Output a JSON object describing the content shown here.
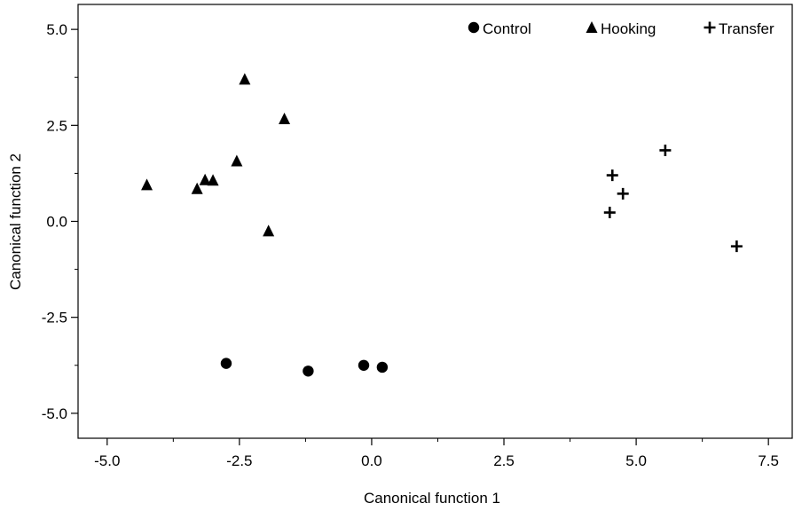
{
  "chart_data": {
    "type": "scatter",
    "xlabel": "Canonical function 1",
    "ylabel": "Canonical function 2",
    "xlim": [
      -5.55,
      7.95
    ],
    "ylim": [
      -5.65,
      5.65
    ],
    "xticks": [
      {
        "value": -5.0,
        "label": "-5.0"
      },
      {
        "value": -2.5,
        "label": "-2.5"
      },
      {
        "value": 0.0,
        "label": "0.0"
      },
      {
        "value": 2.5,
        "label": "2.5"
      },
      {
        "value": 5.0,
        "label": "5.0"
      },
      {
        "value": 7.5,
        "label": "7.5"
      }
    ],
    "yticks": [
      {
        "value": 5.0,
        "label": "5.0"
      },
      {
        "value": 2.5,
        "label": "2.5"
      },
      {
        "value": 0.0,
        "label": "0.0"
      },
      {
        "value": -2.5,
        "label": "-2.5"
      },
      {
        "value": -5.0,
        "label": "-5.0"
      }
    ],
    "grid": false,
    "legend_position": "top-right",
    "series": [
      {
        "name": "Control",
        "marker": "circle",
        "color": "#000000",
        "points": [
          [
            -2.75,
            -3.7
          ],
          [
            -1.2,
            -3.9
          ],
          [
            -0.15,
            -3.75
          ],
          [
            0.2,
            -3.8
          ]
        ]
      },
      {
        "name": "Hooking",
        "marker": "triangle",
        "color": "#000000",
        "points": [
          [
            -4.25,
            0.95
          ],
          [
            -3.3,
            0.85
          ],
          [
            -3.15,
            1.08
          ],
          [
            -3.0,
            1.07
          ],
          [
            -2.55,
            1.57
          ],
          [
            -2.4,
            3.7
          ],
          [
            -1.65,
            2.67
          ],
          [
            -1.95,
            -0.25
          ]
        ]
      },
      {
        "name": "Transfer",
        "marker": "plus",
        "color": "#000000",
        "points": [
          [
            4.55,
            1.2
          ],
          [
            4.5,
            0.23
          ],
          [
            4.75,
            0.72
          ],
          [
            5.55,
            1.85
          ],
          [
            6.9,
            -0.65
          ]
        ]
      }
    ]
  }
}
